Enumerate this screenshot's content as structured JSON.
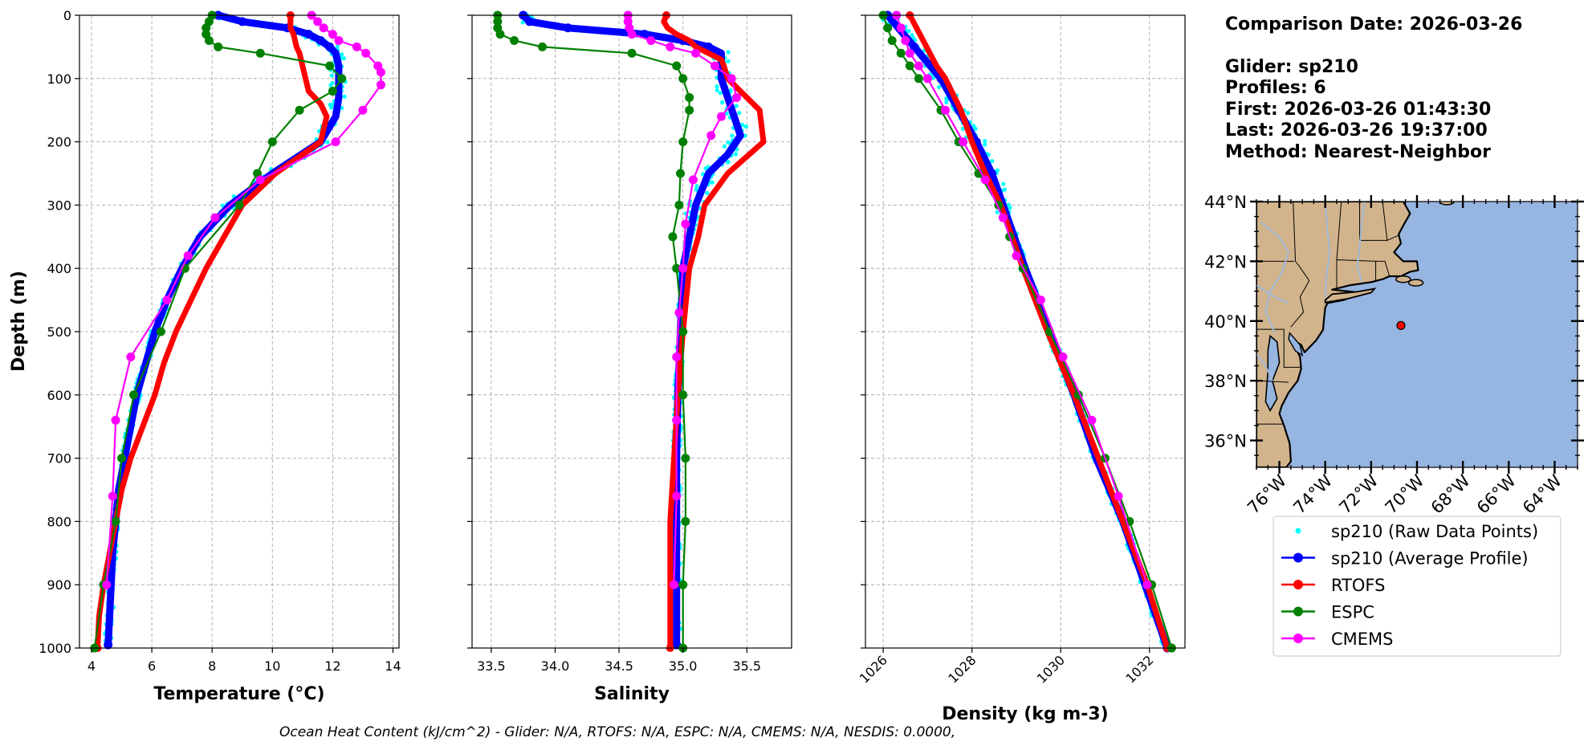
{
  "info": {
    "comparison_date": "Comparison Date: 2026-03-26",
    "glider": "Glider: sp210",
    "profiles": "Profiles: 6",
    "first": "First: 2026-03-26 01:43:30",
    "last": "Last: 2026-03-26 19:37:00",
    "method": "Method: Nearest-Neighbor"
  },
  "footer": "Ocean Heat Content (kJ/cm^2) - Glider: N/A,  RTOFS: N/A,  ESPC: N/A,  CMEMS: N/A,  NESDIS: 0.0000,",
  "colors": {
    "raw": "#00ffff",
    "avg": "#0000ff",
    "rtofs": "#ff0000",
    "espc": "#008000",
    "cmems": "#ff00ff",
    "land": "#d2b48c",
    "ocean": "#96b5e1",
    "marker": "#ff0000"
  },
  "legend": [
    {
      "label": "sp210 (Raw Data Points)",
      "key": "raw"
    },
    {
      "label": "sp210 (Average Profile)",
      "key": "avg"
    },
    {
      "label": "RTOFS",
      "key": "rtofs"
    },
    {
      "label": "ESPC",
      "key": "espc"
    },
    {
      "label": "CMEMS",
      "key": "cmems"
    }
  ],
  "map": {
    "lon_range": [
      -77,
      -63
    ],
    "lat_range": [
      35.1,
      44
    ],
    "lat_ticks": [
      "44°N",
      "42°N",
      "40°N",
      "38°N",
      "36°N"
    ],
    "lat_values": [
      44,
      42,
      40,
      38,
      36
    ],
    "lon_ticks": [
      "76°W",
      "74°W",
      "72°W",
      "70°W",
      "68°W",
      "66°W",
      "64°W"
    ],
    "lon_values": [
      -76,
      -74,
      -72,
      -70,
      -68,
      -66,
      -64
    ],
    "glider_location": [
      -70.7,
      39.85
    ]
  },
  "chart_data": [
    {
      "type": "line",
      "xlabel": "Temperature (°C)",
      "ylabel": "Depth (m)",
      "xlim": [
        3.6,
        14.2
      ],
      "ylim": [
        1000,
        0
      ],
      "xticks": [
        4,
        6,
        8,
        10,
        12,
        14
      ],
      "xtick_labels": [
        "4",
        "6",
        "8",
        "10",
        "12",
        "14"
      ],
      "yticks": [
        0,
        100,
        200,
        300,
        400,
        500,
        600,
        700,
        800,
        900,
        1000
      ],
      "ytick_labels": [
        "0",
        "100",
        "200",
        "300",
        "400",
        "500",
        "600",
        "700",
        "800",
        "900",
        "1000"
      ],
      "grid": true,
      "series": [
        {
          "key": "avg",
          "depth": [
            0,
            10,
            20,
            30,
            40,
            50,
            60,
            80,
            100,
            130,
            160,
            200,
            250,
            300,
            350,
            400,
            450,
            500,
            550,
            600,
            650,
            700,
            750,
            800,
            850,
            900,
            950,
            995
          ],
          "values": [
            8.2,
            9.0,
            10.5,
            11.2,
            11.6,
            11.9,
            12.1,
            12.2,
            12.2,
            12.2,
            12.1,
            11.6,
            10.0,
            8.6,
            7.6,
            7.0,
            6.5,
            6.1,
            5.8,
            5.5,
            5.3,
            5.1,
            4.9,
            4.8,
            4.7,
            4.65,
            4.6,
            4.55
          ]
        },
        {
          "key": "rtofs",
          "depth": [
            0,
            10,
            20,
            30,
            40,
            50,
            60,
            80,
            100,
            120,
            140,
            160,
            180,
            200,
            250,
            300,
            350,
            400,
            450,
            500,
            550,
            600,
            650,
            700,
            750,
            800,
            850,
            900,
            950,
            1000
          ],
          "values": [
            10.6,
            10.6,
            10.6,
            10.7,
            10.75,
            10.8,
            10.9,
            11.0,
            11.1,
            11.2,
            11.6,
            11.8,
            11.7,
            11.6,
            10.1,
            9.0,
            8.4,
            7.8,
            7.3,
            6.8,
            6.4,
            6.1,
            5.7,
            5.3,
            5.0,
            4.8,
            4.6,
            4.4,
            4.25,
            4.2
          ]
        },
        {
          "key": "espc",
          "depth": [
            0,
            10,
            20,
            30,
            40,
            50,
            60,
            80,
            100,
            120,
            150,
            200,
            250,
            300,
            400,
            500,
            600,
            700,
            800,
            900,
            1000
          ],
          "values": [
            8.0,
            7.9,
            7.8,
            7.8,
            7.9,
            8.2,
            9.6,
            11.9,
            12.3,
            12.0,
            10.9,
            10.0,
            9.5,
            8.9,
            7.1,
            6.3,
            5.4,
            5.0,
            4.8,
            4.4,
            4.1
          ]
        },
        {
          "key": "cmems",
          "depth": [
            0,
            10,
            20,
            30,
            40,
            50,
            60,
            80,
            90,
            110,
            150,
            200,
            260,
            320,
            380,
            450,
            540,
            640,
            760,
            900
          ],
          "values": [
            11.3,
            11.5,
            11.7,
            12.0,
            12.2,
            12.8,
            13.1,
            13.5,
            13.6,
            13.6,
            13.0,
            12.1,
            9.6,
            8.1,
            7.2,
            6.5,
            5.3,
            4.8,
            4.7,
            4.5
          ]
        }
      ]
    },
    {
      "type": "line",
      "xlabel": "Salinity",
      "xlim": [
        33.35,
        35.85
      ],
      "ylim": [
        1000,
        0
      ],
      "xticks": [
        33.5,
        34.0,
        34.5,
        35.0,
        35.5
      ],
      "xtick_labels": [
        "33.5",
        "34.0",
        "34.5",
        "35.0",
        "35.5"
      ],
      "yticks": [
        0,
        100,
        200,
        300,
        400,
        500,
        600,
        700,
        800,
        900,
        1000
      ],
      "grid": true,
      "series": [
        {
          "key": "avg",
          "depth": [
            0,
            10,
            20,
            30,
            40,
            50,
            60,
            80,
            100,
            130,
            160,
            190,
            220,
            250,
            300,
            350,
            400,
            500,
            600,
            700,
            800,
            900,
            995
          ],
          "values": [
            33.75,
            33.8,
            34.1,
            34.7,
            35.0,
            35.2,
            35.3,
            35.3,
            35.3,
            35.35,
            35.4,
            35.45,
            35.35,
            35.2,
            35.1,
            35.05,
            35.0,
            34.98,
            34.96,
            34.95,
            34.95,
            34.95,
            34.95
          ]
        },
        {
          "key": "rtofs",
          "depth": [
            0,
            10,
            20,
            30,
            40,
            50,
            60,
            70,
            80,
            100,
            120,
            150,
            200,
            250,
            300,
            350,
            400,
            500,
            600,
            700,
            800,
            900,
            1000
          ],
          "values": [
            34.87,
            34.85,
            34.88,
            34.95,
            35.05,
            35.1,
            35.2,
            35.3,
            35.32,
            35.35,
            35.45,
            35.6,
            35.63,
            35.35,
            35.17,
            35.12,
            35.05,
            35.0,
            34.96,
            34.93,
            34.9,
            34.9,
            34.9
          ]
        },
        {
          "key": "espc",
          "depth": [
            0,
            10,
            20,
            30,
            40,
            50,
            60,
            80,
            100,
            130,
            150,
            200,
            250,
            300,
            350,
            400,
            500,
            600,
            700,
            800,
            900,
            1000
          ],
          "values": [
            33.55,
            33.55,
            33.55,
            33.57,
            33.68,
            33.9,
            34.6,
            34.95,
            35.0,
            35.05,
            35.05,
            35.0,
            34.98,
            34.97,
            34.92,
            34.95,
            35.0,
            35.0,
            35.02,
            35.02,
            35.0,
            35.0
          ]
        },
        {
          "key": "cmems",
          "depth": [
            0,
            10,
            20,
            30,
            40,
            50,
            60,
            80,
            100,
            130,
            160,
            190,
            260,
            330,
            400,
            470,
            540,
            640,
            760,
            900
          ],
          "values": [
            34.57,
            34.57,
            34.58,
            34.6,
            34.75,
            34.9,
            35.1,
            35.25,
            35.38,
            35.42,
            35.3,
            35.22,
            35.08,
            35.02,
            35.0,
            34.97,
            34.95,
            34.95,
            34.95,
            34.93
          ]
        }
      ]
    },
    {
      "type": "line",
      "xlabel": "Density (kg m-3)",
      "xlim": [
        1025.6,
        1032.8
      ],
      "ylim": [
        1000,
        0
      ],
      "xticks": [
        1026,
        1028,
        1030,
        1032
      ],
      "xtick_labels": [
        "1026",
        "1028",
        "1030",
        "1032"
      ],
      "yticks": [
        0,
        100,
        200,
        300,
        400,
        500,
        600,
        700,
        800,
        900,
        1000
      ],
      "grid": true,
      "series": [
        {
          "key": "avg",
          "depth": [
            0,
            50,
            100,
            150,
            200,
            250,
            300,
            400,
            500,
            600,
            700,
            800,
            900,
            1000
          ],
          "values": [
            1026.1,
            1026.7,
            1027.3,
            1027.7,
            1028.1,
            1028.45,
            1028.7,
            1029.2,
            1029.75,
            1030.3,
            1030.8,
            1031.4,
            1031.9,
            1032.4
          ]
        },
        {
          "key": "rtofs",
          "depth": [
            0,
            20,
            40,
            60,
            80,
            100,
            150,
            200,
            250,
            300,
            400,
            500,
            600,
            700,
            800,
            900,
            1000
          ],
          "values": [
            1026.6,
            1026.75,
            1026.9,
            1027.05,
            1027.2,
            1027.4,
            1027.75,
            1028.0,
            1028.3,
            1028.65,
            1029.15,
            1029.7,
            1030.3,
            1030.85,
            1031.4,
            1031.95,
            1032.4
          ]
        },
        {
          "key": "espc",
          "depth": [
            0,
            20,
            40,
            60,
            80,
            100,
            150,
            200,
            250,
            300,
            350,
            400,
            500,
            600,
            700,
            800,
            900,
            1000
          ],
          "values": [
            1026.0,
            1026.1,
            1026.2,
            1026.4,
            1026.6,
            1026.8,
            1027.3,
            1027.7,
            1028.15,
            1028.6,
            1028.85,
            1029.15,
            1029.75,
            1030.4,
            1031.0,
            1031.55,
            1032.05,
            1032.5
          ]
        },
        {
          "key": "cmems",
          "depth": [
            0,
            20,
            40,
            60,
            80,
            100,
            150,
            200,
            260,
            320,
            380,
            450,
            540,
            640,
            760,
            900
          ],
          "values": [
            1026.3,
            1026.4,
            1026.5,
            1026.6,
            1026.8,
            1027.0,
            1027.4,
            1027.8,
            1028.3,
            1028.7,
            1029.0,
            1029.55,
            1030.05,
            1030.7,
            1031.3,
            1031.95
          ]
        }
      ]
    }
  ]
}
